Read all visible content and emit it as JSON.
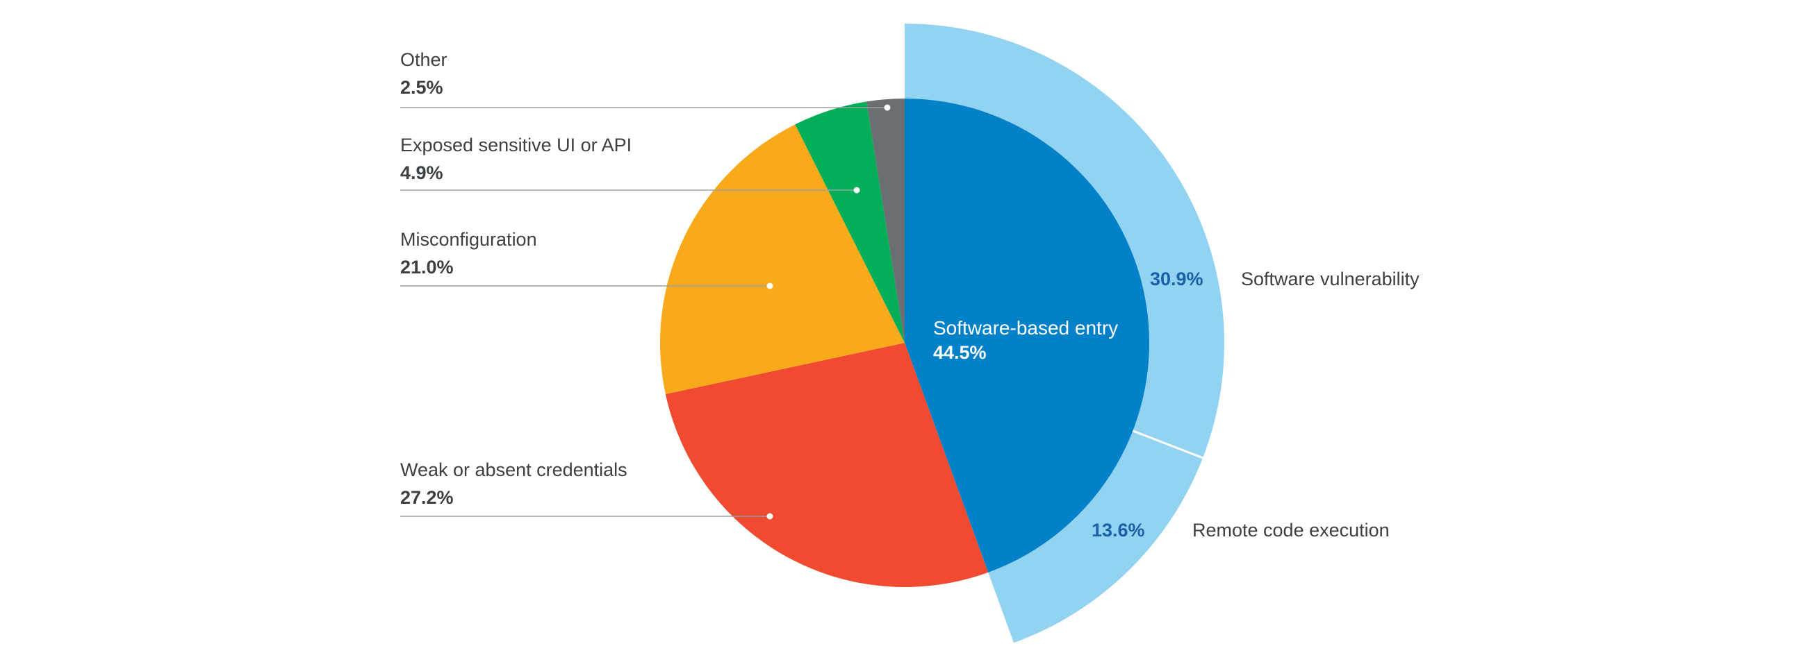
{
  "chart_data": {
    "type": "pie",
    "title": "",
    "slices": [
      {
        "label": "Software-based entry",
        "value": 44.5,
        "display": "44.5%",
        "color": "#0281c8"
      },
      {
        "label": "Weak or absent credentials",
        "value": 27.2,
        "display": "27.2%",
        "color": "#f04b30"
      },
      {
        "label": "Misconfiguration",
        "value": 21.0,
        "display": "21.0%",
        "color": "#f9aa1a"
      },
      {
        "label": "Exposed sensitive UI or API",
        "value": 4.9,
        "display": "4.9%",
        "color": "#02ae58"
      },
      {
        "label": "Other",
        "value": 2.5,
        "display": "2.5%",
        "color": "#6b6e73"
      }
    ],
    "breakdown": {
      "parent": "Software-based entry",
      "color": "#93d3f2",
      "segments": [
        {
          "label": "Software vulnerability",
          "value": 30.9,
          "display": "30.9%"
        },
        {
          "label": "Remote code execution",
          "value": 13.6,
          "display": "13.6%"
        }
      ]
    }
  }
}
